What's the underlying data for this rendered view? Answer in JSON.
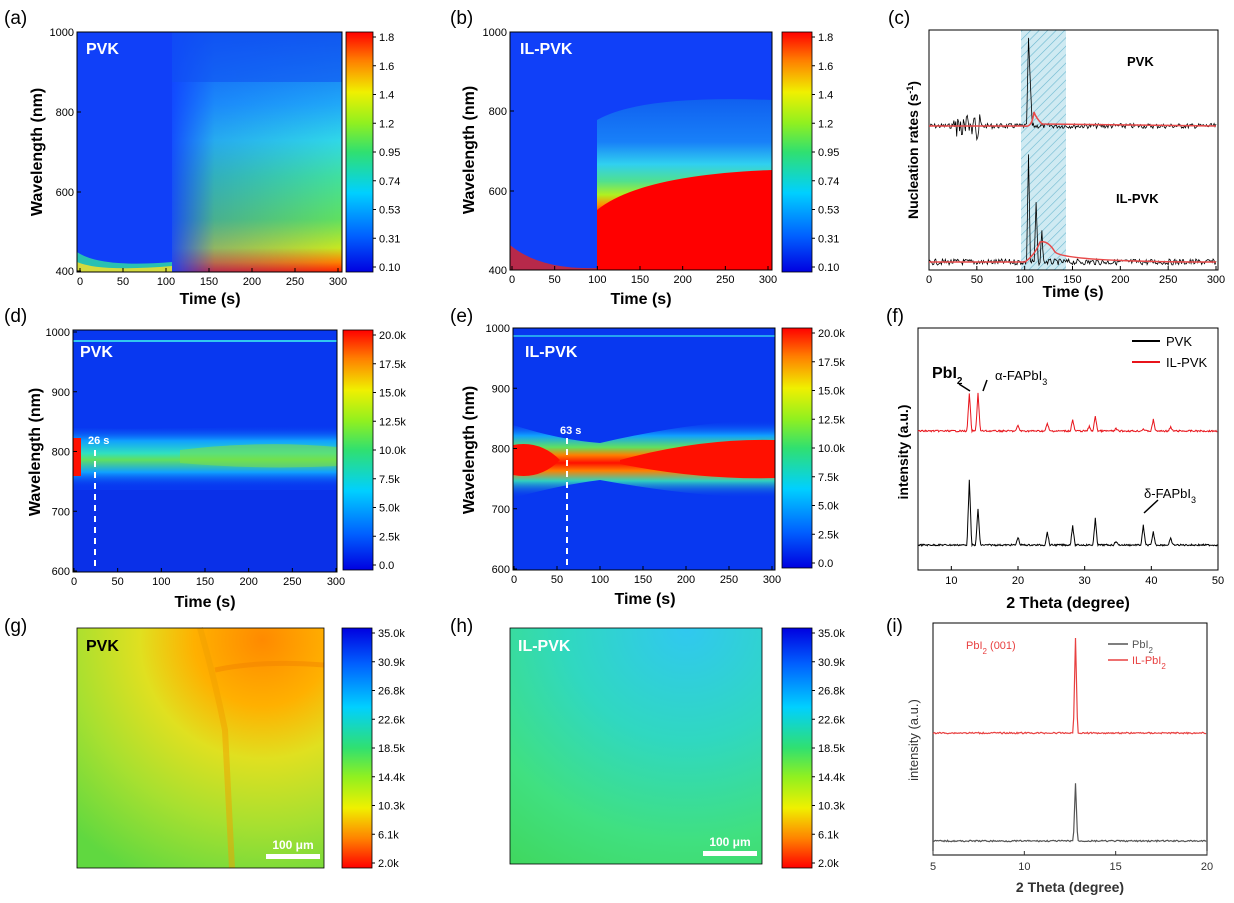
{
  "panels": [
    {
      "id": "a",
      "label": "(a)",
      "type": "heatmap",
      "inset": "PVK",
      "xlabel": "Time (s)",
      "ylabel": "Wavelength (nm)",
      "xticks": [
        "0",
        "50",
        "100",
        "150",
        "200",
        "250",
        "300"
      ],
      "yticks": [
        "400",
        "600",
        "800",
        "1000"
      ],
      "colorbar": [
        "1.8",
        "1.6",
        "1.4",
        "1.2",
        "0.95",
        "0.74",
        "0.53",
        "0.31",
        "0.10"
      ]
    },
    {
      "id": "b",
      "label": "(b)",
      "type": "heatmap",
      "inset": "IL-PVK",
      "xlabel": "Time (s)",
      "ylabel": "Wavelength (nm)",
      "xticks": [
        "0",
        "50",
        "100",
        "150",
        "200",
        "250",
        "300"
      ],
      "yticks": [
        "400",
        "600",
        "800",
        "1000"
      ],
      "colorbar": [
        "1.8",
        "1.6",
        "1.4",
        "1.2",
        "0.95",
        "0.74",
        "0.53",
        "0.31",
        "0.10"
      ]
    },
    {
      "id": "c",
      "label": "(c)",
      "type": "line",
      "xlabel": "Time (s)",
      "ylabel": "Nucleation rates (s",
      "ylabel_sup": "-1",
      "ylabel_end": ")",
      "xticks": [
        "0",
        "50",
        "100",
        "150",
        "200",
        "250",
        "300"
      ],
      "series_labels": [
        "PVK",
        "IL-PVK"
      ]
    },
    {
      "id": "d",
      "label": "(d)",
      "type": "heatmap",
      "inset": "PVK",
      "xlabel": "Time (s)",
      "ylabel": "Wavelength (nm)",
      "xticks": [
        "0",
        "50",
        "100",
        "150",
        "200",
        "250",
        "300"
      ],
      "yticks": [
        "600",
        "700",
        "800",
        "900",
        "1000"
      ],
      "marker": "26 s",
      "colorbar": [
        "20.0k",
        "17.5k",
        "15.0k",
        "12.5k",
        "10.0k",
        "7.5k",
        "5.0k",
        "2.5k",
        "0.0"
      ]
    },
    {
      "id": "e",
      "label": "(e)",
      "type": "heatmap",
      "inset": "IL-PVK",
      "xlabel": "Time (s)",
      "ylabel": "Wavelength (nm)",
      "xticks": [
        "0",
        "50",
        "100",
        "150",
        "200",
        "250",
        "300"
      ],
      "yticks": [
        "600",
        "700",
        "800",
        "900",
        "1000"
      ],
      "marker": "63 s",
      "colorbar": [
        "20.0k",
        "17.5k",
        "15.0k",
        "12.5k",
        "10.0k",
        "7.5k",
        "5.0k",
        "2.5k",
        "0.0"
      ]
    },
    {
      "id": "f",
      "label": "(f)",
      "type": "line",
      "xlabel": "2 Theta (degree)",
      "ylabel": "intensity (a.u.)",
      "xticks": [
        "10",
        "20",
        "30",
        "40",
        "50"
      ],
      "legend": [
        "PVK",
        "IL-PVK"
      ],
      "annotations": [
        {
          "text": "PbI",
          "sub": "2"
        },
        {
          "text": "α-FAPbI",
          "sub": "3"
        },
        {
          "text": "δ-FAPbI",
          "sub": "3"
        }
      ]
    },
    {
      "id": "g",
      "label": "(g)",
      "type": "map",
      "inset": "PVK",
      "scalebar": "100 μm",
      "colorbar": [
        "35.0k",
        "30.9k",
        "26.8k",
        "22.6k",
        "18.5k",
        "14.4k",
        "10.3k",
        "6.1k",
        "2.0k"
      ]
    },
    {
      "id": "h",
      "label": "(h)",
      "type": "map",
      "inset": "IL-PVK",
      "scalebar": "100 μm",
      "colorbar": [
        "35.0k",
        "30.9k",
        "26.8k",
        "22.6k",
        "18.5k",
        "14.4k",
        "10.3k",
        "6.1k",
        "2.0k"
      ]
    },
    {
      "id": "i",
      "label": "(i)",
      "type": "line",
      "xlabel": "2 Theta (degree)",
      "ylabel": "intensity (a.u.)",
      "xticks": [
        "5",
        "10",
        "15",
        "20"
      ],
      "legend": [
        {
          "text": "PbI",
          "sub": "2"
        },
        {
          "text": "IL-PbI",
          "sub": "2"
        }
      ],
      "annotation": {
        "text": "PbI",
        "sub": "2",
        "tail": " (001)"
      }
    }
  ],
  "colors": {
    "pvk": "#000000",
    "il_pvk": "#e8141b",
    "fit": "#e84a4a",
    "shade": "#bfe3ee",
    "pvk_i": "#555555",
    "il_i": "#e84040"
  },
  "chart_data": [
    {
      "panel": "c",
      "type": "line",
      "xlabel": "Time (s)",
      "ylabel": "Nucleation rates (s-1)",
      "xlim": [
        0,
        300
      ],
      "series": [
        {
          "name": "PVK",
          "peaks_at_s": [
            104,
            106
          ]
        },
        {
          "name": "IL-PVK",
          "peaks_at_s": [
            104,
            112,
            118
          ]
        }
      ],
      "shaded_region_s": [
        95,
        143
      ]
    },
    {
      "panel": "f",
      "type": "line",
      "xlabel": "2 Theta (degree)",
      "ylabel": "intensity (a.u.)",
      "xlim": [
        5,
        50
      ],
      "series": [
        {
          "name": "PVK",
          "peaks_2theta": [
            12.7,
            14.0,
            20.0,
            24.4,
            28.2,
            31.6,
            34.7,
            38.8,
            40.3,
            42.9
          ],
          "rel_height": [
            1.0,
            0.55,
            0.12,
            0.2,
            0.3,
            0.4,
            0.06,
            0.3,
            0.2,
            0.1
          ]
        },
        {
          "name": "IL-PVK",
          "peaks_2theta": [
            12.7,
            14.0,
            20.0,
            24.4,
            28.2,
            30.7,
            31.6,
            34.7,
            38.8,
            40.3,
            42.9
          ],
          "rel_height": [
            1.0,
            1.0,
            0.15,
            0.2,
            0.3,
            0.12,
            0.4,
            0.06,
            0.06,
            0.3,
            0.1
          ]
        }
      ]
    },
    {
      "panel": "i",
      "type": "line",
      "xlabel": "2 Theta (degree)",
      "ylabel": "intensity (a.u.)",
      "xlim": [
        5,
        20
      ],
      "series": [
        {
          "name": "PbI2",
          "peaks_2theta": [
            12.8
          ],
          "rel_height": [
            0.55
          ]
        },
        {
          "name": "IL-PbI2",
          "peaks_2theta": [
            12.8
          ],
          "rel_height": [
            1.0
          ]
        }
      ]
    }
  ]
}
